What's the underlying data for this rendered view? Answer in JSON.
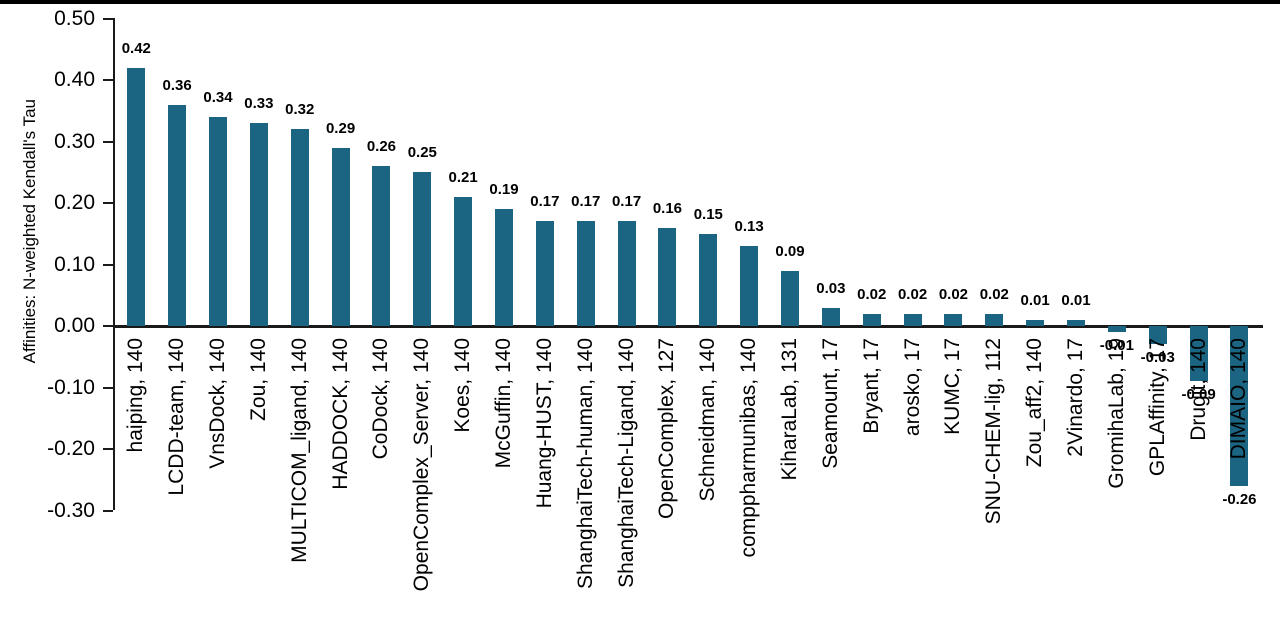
{
  "chart_data": {
    "type": "bar",
    "title": "",
    "xlabel": "",
    "ylabel": "Affinities: N-weighted Kendall's Tau",
    "ylim": [
      -0.3,
      0.5
    ],
    "grid": false,
    "legend": false,
    "bar_color": "#1b6482",
    "axis_color": "#1a1a1a",
    "text_color": "#000000",
    "yticks": [
      "0.50",
      "0.40",
      "0.30",
      "0.20",
      "0.10",
      "0.00",
      "-0.10",
      "-0.20",
      "-0.30"
    ],
    "categories": [
      "haiping, 140",
      "LCDD-team, 140",
      "VnsDock, 140",
      "Zou, 140",
      "MULTICOM_ligand, 140",
      "HADDOCK, 140",
      "CoDock, 140",
      "OpenComplex_Server, 140",
      "Koes, 140",
      "McGuffin, 140",
      "Huang-HUST, 140",
      "ShanghaiTech-human, 140",
      "ShanghaiTech-Ligand, 140",
      "OpenComplex, 127",
      "Schneidman, 140",
      "comppharmunibas, 140",
      "KiharaLab, 131",
      "Seamount, 17",
      "Bryant, 17",
      "arosko, 17",
      "KUMC, 17",
      "SNU-CHEM-lig, 112",
      "Zou_aff2, 140",
      "2Vinardo, 17",
      "GromihaLab, 19",
      "GPLAffinity, 17",
      "Drugit, 140",
      "DIMAIO, 140"
    ],
    "values": [
      0.42,
      0.36,
      0.34,
      0.33,
      0.32,
      0.29,
      0.26,
      0.25,
      0.21,
      0.19,
      0.17,
      0.17,
      0.17,
      0.16,
      0.15,
      0.13,
      0.09,
      0.03,
      0.02,
      0.02,
      0.02,
      0.02,
      0.01,
      0.01,
      -0.01,
      -0.03,
      -0.09,
      -0.26
    ],
    "value_labels": [
      "0.42",
      "0.36",
      "0.34",
      "0.33",
      "0.32",
      "0.29",
      "0.26",
      "0.25",
      "0.21",
      "0.19",
      "0.17",
      "0.17",
      "0.17",
      "0.16",
      "0.15",
      "0.13",
      "0.09",
      "0.03",
      "0.02",
      "0.02",
      "0.02",
      "0.02",
      "0.01",
      "0.01",
      "-0.01",
      "-0.03",
      "-0.09",
      "-0.26"
    ]
  }
}
